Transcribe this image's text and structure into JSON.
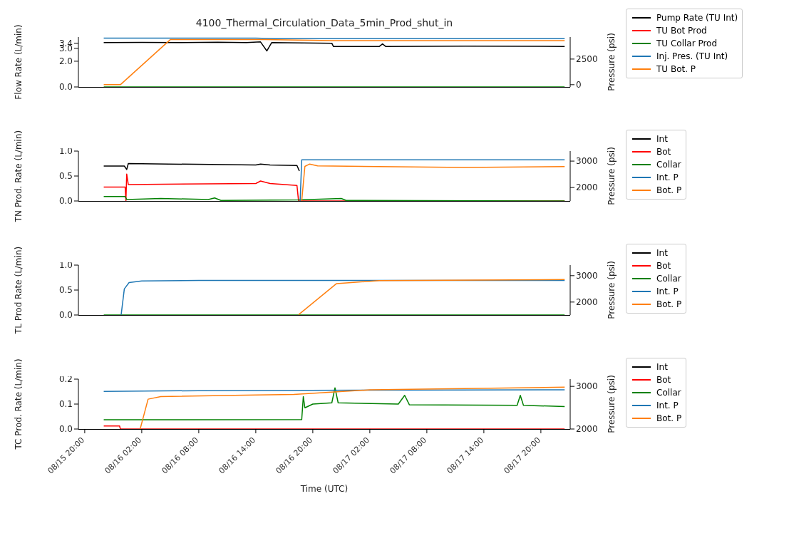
{
  "chart_data": [
    {
      "type": "line",
      "title": "4100_Thermal_Circulation_Data_5min_Prod_shut_in",
      "ylabel": "Flow Rate (L/min)",
      "y2label": "Pressure (psi)",
      "legend": "right",
      "tick_labels": "y",
      "xlim": [
        "--08-15T19:20",
        "--08-17T23:05"
      ],
      "ylim": [
        0,
        3.88
      ],
      "yticks": [
        {
          "value": 0,
          "label": "0.0"
        },
        {
          "value": 2,
          "label": "2.0"
        },
        {
          "value": 3,
          "label": "3.0"
        },
        {
          "value": 3.4,
          "label": "3.4"
        }
      ],
      "y2lim": [
        -220,
        4650
      ],
      "y2ticks": [
        0,
        2500
      ],
      "series": [
        {
          "name": "Pump Rate (TU Int)",
          "color": "#000000",
          "x": [
            "--08-15T22:00",
            "--08-16T02:00",
            "--08-16T06:00",
            "--08-16T10:00",
            "--08-16T13:00",
            "--08-16T14:30",
            "--08-16T15:10",
            "--08-16T15:40",
            "--08-16T19:00",
            "--08-16T22:00",
            "--08-16T22:10",
            "--08-17T03:00",
            "--08-17T03:20",
            "--08-17T03:40",
            "--08-17T12:00",
            "--08-17T22:30"
          ],
          "values": [
            3.45,
            3.47,
            3.45,
            3.48,
            3.45,
            3.5,
            2.8,
            3.45,
            3.42,
            3.4,
            3.15,
            3.15,
            3.35,
            3.15,
            3.18,
            3.15
          ]
        },
        {
          "name": "TU Bot Prod",
          "color": "#ff0000"
        },
        {
          "name": "TU Collar Prod",
          "color": "#008000",
          "x": [
            "--08-15T22:00",
            "--08-17T22:30"
          ],
          "values": [
            0,
            0
          ]
        },
        {
          "name": "Inj. Pres. (TU Int)",
          "color": "#1f77b4",
          "axis": "y2",
          "x": [
            "--08-15T22:00",
            "--08-16T14:00",
            "--08-16T16:00",
            "--08-17T22:30"
          ],
          "values": [
            4550,
            4550,
            4500,
            4500
          ]
        },
        {
          "name": "TU Bot. P",
          "color": "#ff7f0e",
          "axis": "y2",
          "x": [
            "--08-15T22:00",
            "--08-15T23:45",
            "--08-16T05:00",
            "--08-16T15:00",
            "--08-16T22:00",
            "--08-17T22:30"
          ],
          "values": [
            0,
            0,
            4400,
            4400,
            4300,
            4300
          ]
        }
      ]
    },
    {
      "type": "line",
      "ylabel": "TN Prod. Rate (L/min)",
      "y2label": "Pressure (psi)",
      "legend": "right",
      "tick_labels": "y",
      "xlim": [
        "--08-15T19:20",
        "--08-17T23:05"
      ],
      "ylim": [
        0,
        1
      ],
      "yticks": [
        {
          "value": 0,
          "label": "0.0"
        },
        {
          "value": 0.5,
          "label": "0.5"
        },
        {
          "value": 1,
          "label": "1.0"
        }
      ],
      "y2lim": [
        1490,
        3380
      ],
      "y2ticks": [
        2000,
        3000
      ],
      "series": [
        {
          "name": "Int",
          "color": "#000000",
          "x": [
            "--08-15T22:00",
            "--08-16T00:10",
            "--08-16T00:25",
            "--08-16T00:35",
            "--08-16T14:00",
            "--08-16T14:30",
            "--08-16T15:30",
            "--08-16T18:20",
            "--08-16T18:35"
          ],
          "values": [
            0.7,
            0.7,
            0.63,
            0.75,
            0.72,
            0.74,
            0.72,
            0.71,
            0.6
          ]
        },
        {
          "name": "Bot",
          "color": "#ff0000",
          "x": [
            "--08-15T22:00",
            "--08-16T00:15",
            "--08-16T00:20",
            "--08-16T00:25",
            "--08-16T00:35",
            "--08-16T14:00",
            "--08-16T14:30",
            "--08-16T15:30",
            "--08-16T18:20",
            "--08-16T18:30",
            "--08-17T22:30"
          ],
          "values": [
            0.28,
            0.28,
            0,
            0.54,
            0.33,
            0.35,
            0.4,
            0.35,
            0.31,
            0,
            0
          ]
        },
        {
          "name": "Collar",
          "color": "#008000",
          "x": [
            "--08-15T22:00",
            "--08-16T00:15",
            "--08-16T00:25",
            "--08-16T04:00",
            "--08-16T09:00",
            "--08-16T09:40",
            "--08-16T10:20",
            "--08-16T18:30",
            "--08-16T23:00",
            "--08-16T23:30",
            "--08-17T22:30"
          ],
          "values": [
            0.09,
            0.09,
            0.03,
            0.05,
            0.03,
            0.06,
            0.01,
            0.02,
            0.05,
            0.01,
            0
          ]
        },
        {
          "name": "Int. P",
          "color": "#1f77b4",
          "axis": "y2",
          "x": [
            "--08-16T18:40",
            "--08-16T18:50",
            "--08-17T22:30"
          ],
          "values": [
            1500,
            3050,
            3050
          ]
        },
        {
          "name": "Bot. P",
          "color": "#ff7f0e",
          "axis": "y2",
          "x": [
            "--08-16T18:50",
            "--08-16T19:10",
            "--08-16T19:40",
            "--08-16T20:30",
            "--08-17T12:00",
            "--08-17T22:30"
          ],
          "values": [
            1500,
            2800,
            2890,
            2820,
            2760,
            2790
          ]
        }
      ]
    },
    {
      "type": "line",
      "ylabel": "TL Prod Rate (L/min)",
      "y2label": "Pressure (psi)",
      "legend": "right",
      "tick_labels": "y",
      "xlim": [
        "--08-15T19:20",
        "--08-17T23:05"
      ],
      "ylim": [
        0,
        1
      ],
      "yticks": [
        {
          "value": 0,
          "label": "0.0"
        },
        {
          "value": 0.5,
          "label": "0.5"
        },
        {
          "value": 1,
          "label": "1.0"
        }
      ],
      "y2lim": [
        1510,
        3400
      ],
      "y2ticks": [
        2000,
        3000
      ],
      "series": [
        {
          "name": "Int",
          "color": "#000000"
        },
        {
          "name": "Bot",
          "color": "#ff0000"
        },
        {
          "name": "Collar",
          "color": "#008000",
          "x": [
            "--08-15T22:00",
            "--08-17T22:30"
          ],
          "values": [
            0,
            0
          ]
        },
        {
          "name": "Int. P",
          "color": "#1f77b4",
          "axis": "y2",
          "x": [
            "--08-15T23:50",
            "--08-16T00:10",
            "--08-16T00:40",
            "--08-16T02:00",
            "--08-16T08:00",
            "--08-17T22:30"
          ],
          "values": [
            1520,
            2500,
            2740,
            2800,
            2820,
            2820
          ]
        },
        {
          "name": "Bot. P",
          "color": "#ff7f0e",
          "axis": "y2",
          "x": [
            "--08-16T18:30",
            "--08-16T22:30",
            "--08-17T03:00",
            "--08-17T22:30"
          ],
          "values": [
            1520,
            2700,
            2810,
            2850
          ]
        }
      ]
    },
    {
      "type": "line",
      "ylabel": "TC Prod. Rate (L/min)",
      "y2label": "Pressure (psi)",
      "xlabel": "Time (UTC)",
      "legend": "right",
      "xlim": [
        "--08-15T19:20",
        "--08-17T23:05"
      ],
      "xticks": [
        {
          "value": "--08-15T20:00",
          "label": "08/15 20:00"
        },
        {
          "value": "--08-16T02:00",
          "label": "08/16 02:00"
        },
        {
          "value": "--08-16T08:00",
          "label": "08/16 08:00"
        },
        {
          "value": "--08-16T14:00",
          "label": "08/16 14:00"
        },
        {
          "value": "--08-16T20:00",
          "label": "08/16 20:00"
        },
        {
          "value": "--08-17T02:00",
          "label": "08/17 02:00"
        },
        {
          "value": "--08-17T08:00",
          "label": "08/17 08:00"
        },
        {
          "value": "--08-17T14:00",
          "label": "08/17 14:00"
        },
        {
          "value": "--08-17T20:00",
          "label": "08/17 20:00"
        }
      ],
      "ylim": [
        0,
        0.2
      ],
      "yticks": [
        {
          "value": 0,
          "label": "0.0"
        },
        {
          "value": 0.1,
          "label": "0.1"
        },
        {
          "value": 0.2,
          "label": "0.2"
        }
      ],
      "y2lim": [
        2000,
        3170
      ],
      "y2ticks": [
        2000,
        3000
      ],
      "series": [
        {
          "name": "Int",
          "color": "#000000"
        },
        {
          "name": "Bot",
          "color": "#ff0000",
          "x": [
            "--08-15T22:00",
            "--08-15T23:40",
            "--08-15T23:45",
            "--08-17T22:30"
          ],
          "values": [
            0.012,
            0.012,
            0,
            0
          ]
        },
        {
          "name": "Collar",
          "color": "#008000",
          "x": [
            "--08-15T22:00",
            "--08-16T18:50",
            "--08-16T19:00",
            "--08-16T19:10",
            "--08-16T20:00",
            "--08-16T22:00",
            "--08-16T22:20",
            "--08-16T22:40",
            "--08-17T05:00",
            "--08-17T05:40",
            "--08-17T06:10",
            "--08-17T17:30",
            "--08-17T17:50",
            "--08-17T18:10",
            "--08-17T22:30"
          ],
          "values": [
            0.037,
            0.038,
            0.13,
            0.085,
            0.1,
            0.105,
            0.165,
            0.105,
            0.1,
            0.135,
            0.097,
            0.095,
            0.135,
            0.095,
            0.09
          ]
        },
        {
          "name": "Int. P",
          "color": "#1f77b4",
          "axis": "y2",
          "x": [
            "--08-15T22:00",
            "--08-16T08:00",
            "--08-17T22:30"
          ],
          "values": [
            2880,
            2900,
            2920
          ]
        },
        {
          "name": "Bot. P",
          "color": "#ff7f0e",
          "axis": "y2",
          "x": [
            "--08-16T01:50",
            "--08-16T02:40",
            "--08-16T04:00",
            "--08-16T14:00",
            "--08-16T18:00",
            "--08-17T02:00",
            "--08-17T22:30"
          ],
          "values": [
            2000,
            2700,
            2760,
            2800,
            2810,
            2920,
            2980
          ]
        }
      ]
    }
  ]
}
